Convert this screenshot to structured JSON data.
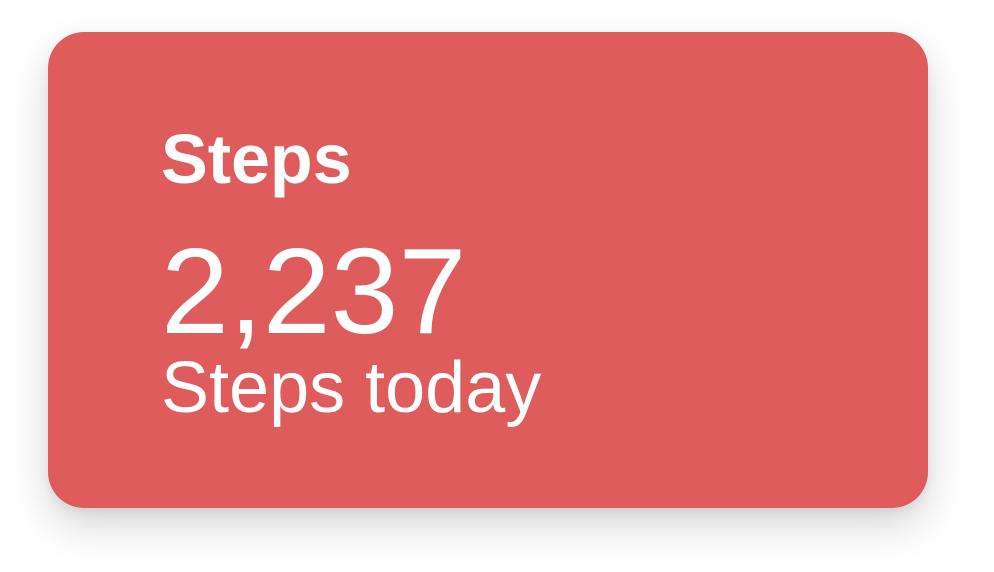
{
  "card": {
    "title": "Steps",
    "value": "2,237",
    "caption": "Steps today",
    "background_color": "#de5c5c",
    "text_color": "#ffffff"
  }
}
